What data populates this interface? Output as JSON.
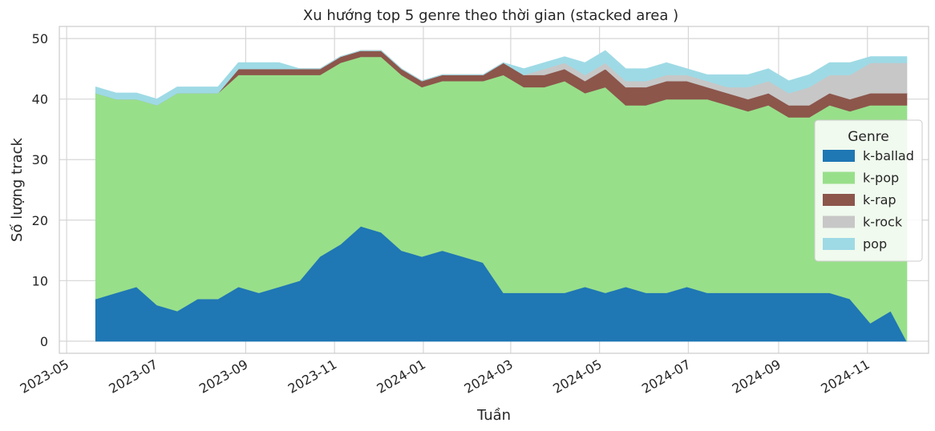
{
  "chart_data": {
    "type": "area",
    "stacked": true,
    "title": "Xu hướng top 5 genre theo thời gian (stacked area )",
    "xlabel": "Tuần",
    "ylabel": "Số lượng track",
    "ylim": [
      -2,
      52
    ],
    "yticks": [
      0,
      10,
      20,
      30,
      40,
      50
    ],
    "xlim": [
      "2023-04-26",
      "2024-12-13"
    ],
    "xticks": [
      "2023-05",
      "2023-07",
      "2023-09",
      "2023-11",
      "2024-01",
      "2024-03",
      "2024-05",
      "2024-07",
      "2024-09",
      "2024-11"
    ],
    "grid": true,
    "legend": {
      "title": "Genre",
      "placement": "right"
    },
    "x": [
      "2023-05-21",
      "2023-06-04",
      "2023-06-18",
      "2023-07-02",
      "2023-07-16",
      "2023-07-30",
      "2023-08-13",
      "2023-08-27",
      "2023-09-10",
      "2023-09-24",
      "2023-10-08",
      "2023-10-22",
      "2023-11-05",
      "2023-11-19",
      "2023-12-03",
      "2023-12-17",
      "2023-12-31",
      "2024-01-14",
      "2024-01-28",
      "2024-02-11",
      "2024-02-25",
      "2024-03-10",
      "2024-03-24",
      "2024-04-07",
      "2024-04-21",
      "2024-05-05",
      "2024-05-19",
      "2024-06-02",
      "2024-06-16",
      "2024-06-30",
      "2024-07-14",
      "2024-07-28",
      "2024-08-11",
      "2024-08-25",
      "2024-09-08",
      "2024-09-22",
      "2024-10-06",
      "2024-10-20",
      "2024-11-03",
      "2024-11-17",
      "2024-11-28"
    ],
    "series": [
      {
        "name": "k-ballad",
        "color": "#1f77b4",
        "values": [
          7,
          8,
          9,
          6,
          5,
          7,
          7,
          9,
          8,
          9,
          10,
          14,
          16,
          19,
          18,
          15,
          14,
          15,
          14,
          13,
          8,
          8,
          8,
          8,
          9,
          8,
          9,
          8,
          8,
          9,
          8,
          8,
          8,
          8,
          8,
          8,
          8,
          7,
          3,
          5,
          0
        ]
      },
      {
        "name": "k-pop",
        "color": "#98df8a",
        "values": [
          34,
          32,
          31,
          33,
          36,
          34,
          34,
          35,
          36,
          35,
          34,
          30,
          30,
          28,
          29,
          29,
          28,
          28,
          29,
          30,
          36,
          34,
          34,
          35,
          32,
          34,
          30,
          31,
          32,
          31,
          32,
          31,
          30,
          31,
          29,
          29,
          31,
          31,
          36,
          34,
          39
        ]
      },
      {
        "name": "k-rap",
        "color": "#8c564b",
        "values": [
          0,
          0,
          0,
          0,
          0,
          0,
          0,
          1,
          1,
          1,
          1,
          1,
          1,
          1,
          1,
          1,
          1,
          1,
          1,
          1,
          2,
          2,
          2,
          2,
          2,
          3,
          3,
          3,
          3,
          3,
          2,
          2,
          2,
          2,
          2,
          2,
          2,
          2,
          2,
          2,
          2
        ]
      },
      {
        "name": "k-rock",
        "color": "#c7c7c7",
        "values": [
          0,
          0,
          0,
          0,
          0,
          0,
          0,
          0,
          0,
          0,
          0,
          0,
          0,
          0,
          0,
          0,
          0,
          0,
          0,
          0,
          0,
          0,
          1,
          1,
          1,
          1,
          1,
          1,
          1,
          1,
          1,
          1,
          2,
          2,
          2,
          3,
          3,
          4,
          5,
          5,
          5
        ]
      },
      {
        "name": "pop",
        "color": "#9edae5",
        "values": [
          1,
          1,
          1,
          1,
          1,
          1,
          1,
          1,
          1,
          1,
          0,
          0,
          0,
          0,
          0,
          0,
          0,
          0,
          0,
          0,
          0,
          1,
          1,
          1,
          2,
          2,
          2,
          2,
          2,
          1,
          1,
          2,
          2,
          2,
          2,
          2,
          2,
          2,
          1,
          1,
          1
        ]
      }
    ]
  }
}
